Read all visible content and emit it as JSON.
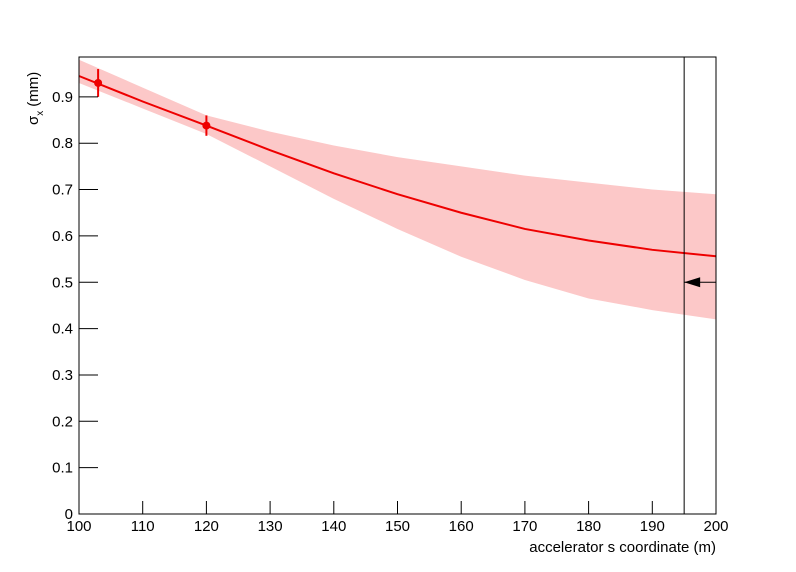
{
  "chart_data": {
    "type": "line",
    "xlabel": "accelerator s coordinate (m)",
    "ylabel": {
      "symbol": "σ",
      "subscript": "x",
      "unit": "(mm)"
    },
    "xlim": [
      100,
      200
    ],
    "ylim": [
      0,
      0.986
    ],
    "xticks": [
      100,
      110,
      120,
      130,
      140,
      150,
      160,
      170,
      180,
      190,
      200
    ],
    "yticks": [
      0,
      0.1,
      0.2,
      0.3,
      0.4,
      0.5,
      0.6,
      0.7,
      0.8,
      0.9
    ],
    "x": [
      100,
      110,
      120,
      130,
      140,
      150,
      160,
      170,
      180,
      190,
      200
    ],
    "fit": {
      "color": "#ee0000",
      "values": [
        0.945,
        0.89,
        0.838,
        0.785,
        0.735,
        0.69,
        0.65,
        0.615,
        0.59,
        0.57,
        0.556
      ]
    },
    "band": {
      "color": "#fcc8c8",
      "upper": [
        0.98,
        0.92,
        0.86,
        0.825,
        0.795,
        0.77,
        0.75,
        0.73,
        0.715,
        0.7,
        0.69
      ],
      "lower": [
        0.93,
        0.875,
        0.82,
        0.75,
        0.68,
        0.615,
        0.555,
        0.505,
        0.465,
        0.44,
        0.42
      ]
    },
    "points": {
      "color": "#ee0000",
      "x": [
        103,
        120
      ],
      "values": [
        0.93,
        0.838
      ],
      "errors": [
        0.03,
        0.022
      ]
    },
    "marker": {
      "x": 195,
      "arrow_y": 0.5
    }
  }
}
